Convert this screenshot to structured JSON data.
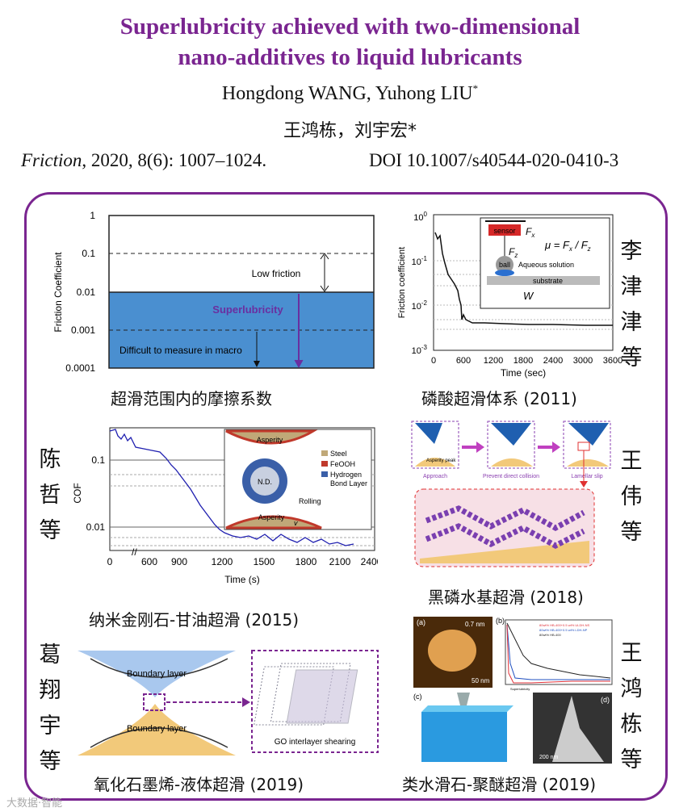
{
  "header": {
    "title_line1": "Superlubricity achieved with two-dimensional",
    "title_line2": "nano-additives to liquid lubricants",
    "authors_en": "Hongdong WANG, Yuhong LIU",
    "authors_en_mark": "*",
    "authors_cn": "王鸿栋，刘宇宏*",
    "journal": "Friction",
    "citation_rest": ", 2020, 8(6): 1007–1024.",
    "doi": "DOI 10.1007/s40544-020-0410-3"
  },
  "fig1": {
    "ylabel": "Friction Coefficient",
    "ticks": [
      "1",
      "0.1",
      "0.01",
      "0.001",
      "0.0001"
    ],
    "low_friction": "Low friction",
    "superlubricity": "Superlubricity",
    "difficult": "Difficult to measure in macro",
    "caption": "超滑范围内的摩擦系数",
    "colors": {
      "region": "#4a8fd0",
      "arrow": "#7a3fb0"
    }
  },
  "fig2": {
    "ylabel": "Friction coefficient",
    "xlabel": "Time (sec)",
    "xticks": [
      "0",
      "600",
      "1200",
      "1800",
      "2400",
      "3000",
      "3600"
    ],
    "yticks": [
      "10",
      "10",
      "10",
      "10"
    ],
    "yexp": [
      "0",
      "-1",
      "-2",
      "-3"
    ],
    "inset": {
      "sensor": "sensor",
      "fx": "F",
      "fx_sub": "x",
      "fz": "F",
      "fz_sub": "z",
      "mu": "μ = F",
      "mu_mid": " / F",
      "ball": "ball",
      "aqueous": "Aqueous solution",
      "substrate": "substrate",
      "w": "W"
    },
    "caption": "磷酸超滑体系 (2011)",
    "author": [
      "李",
      "津",
      "津",
      "等"
    ]
  },
  "fig3": {
    "ylabel": "COF",
    "xlabel": "Time (s)",
    "xticks": [
      "0",
      "600",
      "900",
      "1200",
      "1500",
      "1800",
      "2100",
      "2400"
    ],
    "yticks": [
      "0.1",
      "0.01"
    ],
    "inset": {
      "asperity_top": "Asperity",
      "asperity_bottom": "Asperity",
      "nd": "N.D.",
      "rolling": "Rolling",
      "v": "v"
    },
    "legend": [
      "Steel",
      "FeOOH",
      "Hydrogen",
      "Bond Layer"
    ],
    "legend_colors": [
      "#c0a878",
      "#c0392b",
      "#3a5fa8"
    ],
    "caption": "纳米金刚石-甘油超滑 (2015)",
    "author": [
      "陈",
      "哲",
      "等"
    ]
  },
  "fig4": {
    "labels": [
      "Approach",
      "Prevent direct collision",
      "Lamellar slip"
    ],
    "asperity_peak": "Asperity peak",
    "caption": "黑磷水基超滑 (2018)",
    "author": [
      "王",
      "伟",
      "等"
    ]
  },
  "fig5": {
    "boundary_top": "Boundary layer",
    "boundary_bottom": "Boundary layer",
    "shearing": "GO interlayer shearing",
    "caption": "氧化石墨烯-液体超滑 (2019)",
    "author": [
      "葛",
      "翔",
      "宇",
      "等"
    ]
  },
  "fig6": {
    "panel_a": "(a)",
    "panel_b": "(b)",
    "panel_c": "(c)",
    "panel_d": "(d)",
    "height_label": "0.7 nm",
    "scale_a": "50 nm",
    "scale_d": "200 nm",
    "legend": [
      "80wt% HB-400+0.5 wt% ULDH-NS",
      "80wt% HB-400+0.5 wt% LDH-NP",
      "80wt% HB-400"
    ],
    "legend_colors": [
      "#e0323a",
      "#2050c0",
      "#222222"
    ],
    "superlubricity": "Superlubricity",
    "caption": "类水滑石-聚醚超滑 (2019)",
    "author": [
      "王",
      "鸿",
      "栋",
      "等"
    ]
  },
  "watermark": "大数据·智能"
}
